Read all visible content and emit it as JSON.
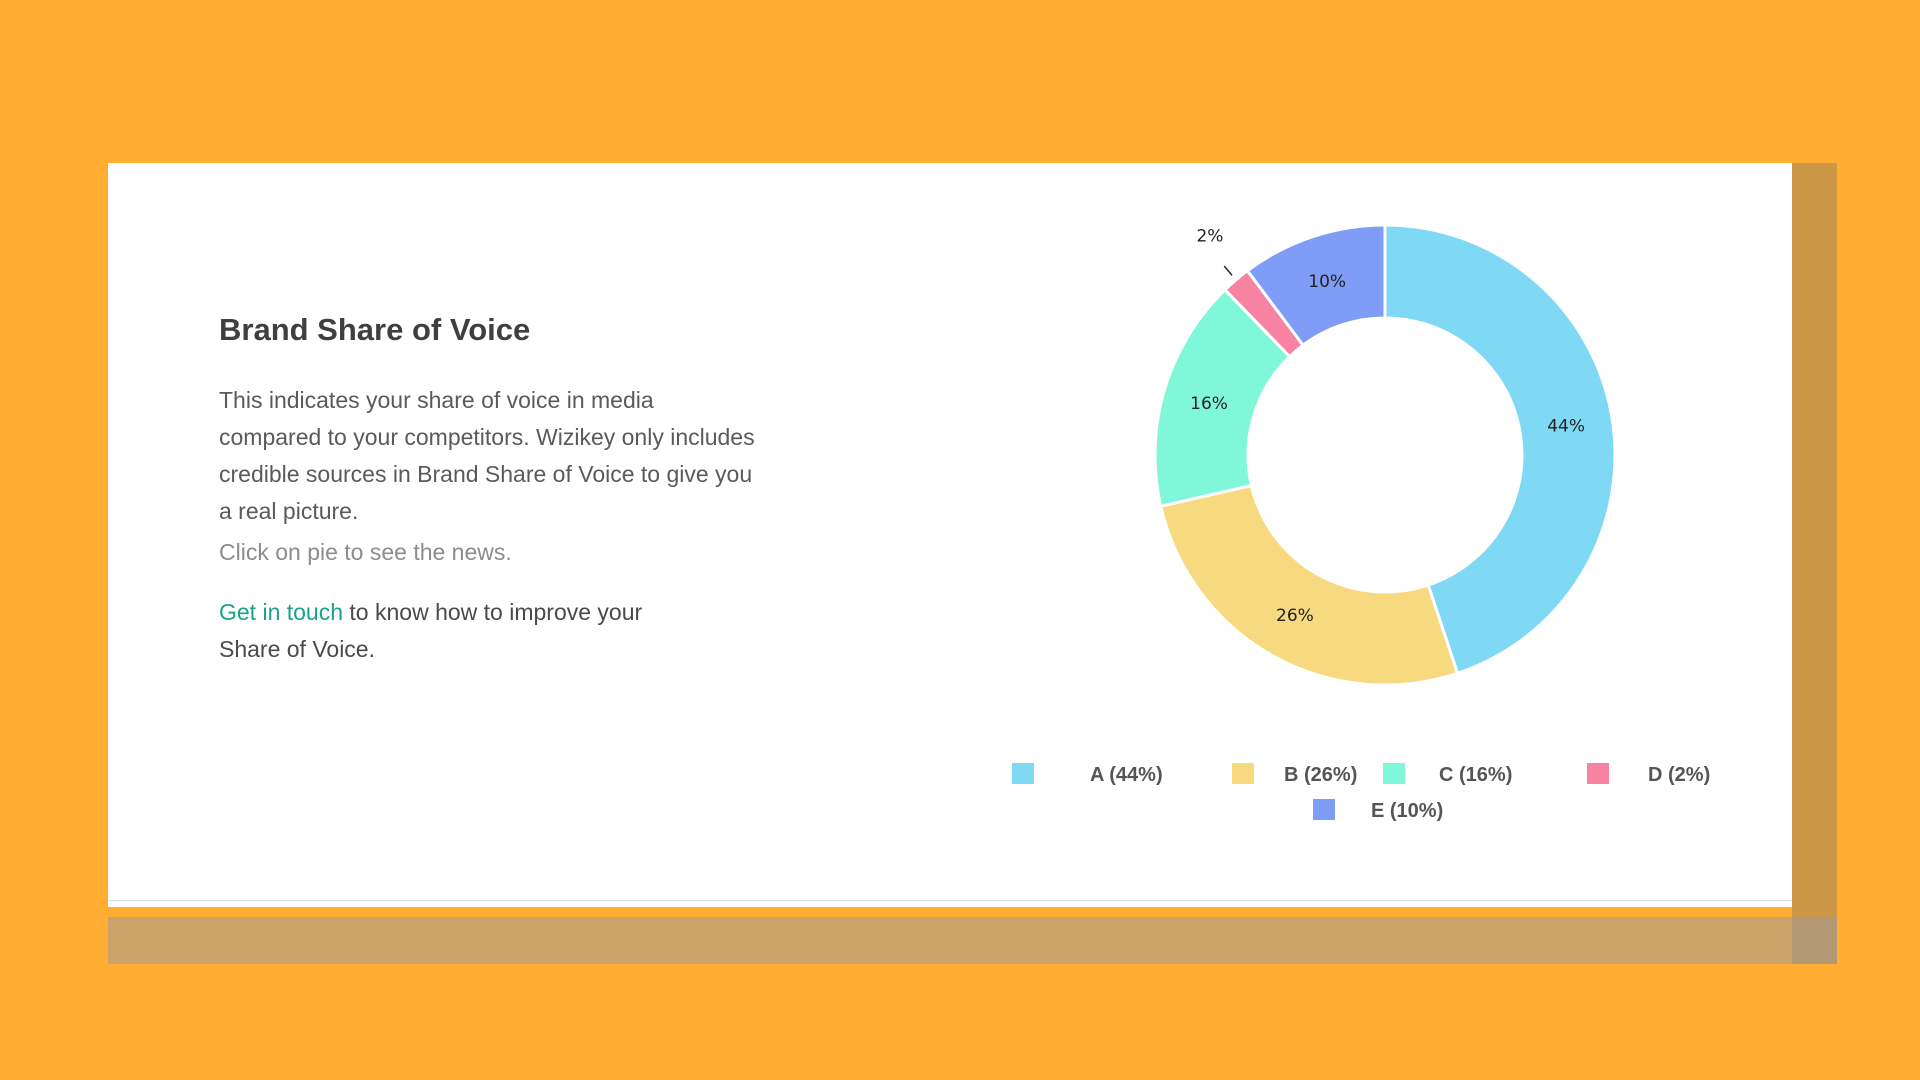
{
  "content": {
    "title": "Brand Share of Voice",
    "description": "This indicates your share of voice in media compared to your competitors. Wizikey only includes credible sources in Brand Share of Voice to give you a real picture.",
    "hint": "Click on pie to see the news.",
    "cta_link": "Get in touch",
    "cta_text": " to know how to improve your Share of Voice."
  },
  "colors": {
    "background": "#ffad33",
    "link": "#1aa28b"
  },
  "chart_data": {
    "type": "pie",
    "donut": true,
    "title": "",
    "legend_position": "bottom",
    "categories": [
      "A",
      "B",
      "C",
      "D",
      "E"
    ],
    "values": [
      44,
      26,
      16,
      2,
      10
    ],
    "slice_labels": [
      "44%",
      "26%",
      "16%",
      "2%",
      "10%"
    ],
    "legend_labels": [
      "A (44%)",
      "B (26%)",
      "C (16%)",
      "D (2%)",
      "E (10%)"
    ],
    "colors": [
      "#7fd9f5",
      "#f7d97f",
      "#7ff7d8",
      "#f882a2",
      "#7f9cf7"
    ]
  }
}
